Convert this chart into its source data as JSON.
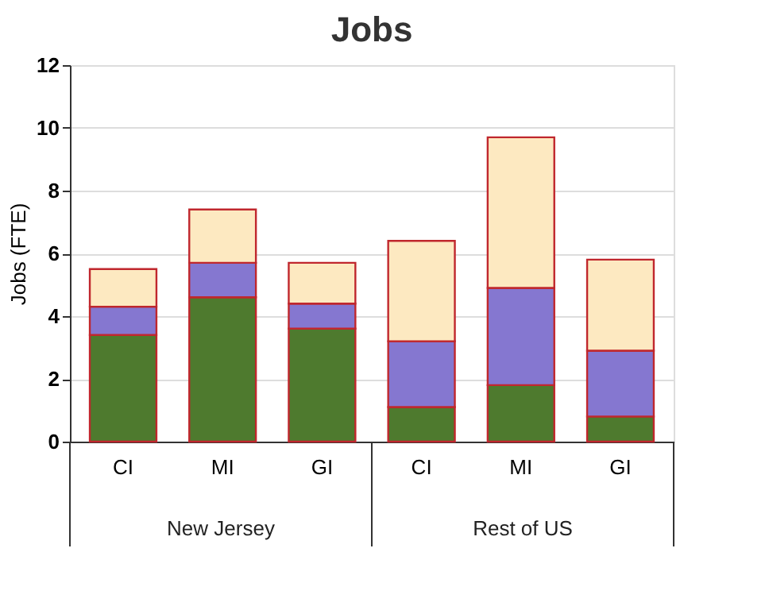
{
  "chart_data": {
    "type": "bar",
    "title": "Jobs",
    "ylabel": "Jobs (FTE)",
    "stacked": true,
    "categories": [
      "CI",
      "MI",
      "GI",
      "CI",
      "MI",
      "GI"
    ],
    "series": [
      {
        "color": "#4e7a2e",
        "values": [
          3.4,
          4.6,
          3.6,
          1.1,
          1.8,
          0.8
        ]
      },
      {
        "color": "#8577d0",
        "values": [
          0.9,
          1.1,
          0.8,
          2.1,
          3.1,
          2.1
        ]
      },
      {
        "color": "#fde9c1",
        "values": [
          1.2,
          1.7,
          1.3,
          3.2,
          4.8,
          2.9
        ]
      }
    ],
    "ylim": [
      0,
      12
    ],
    "yticks": [
      0,
      2,
      4,
      6,
      8,
      10,
      12
    ],
    "grid": "y",
    "legend": false,
    "annotations": [
      "New Jersey",
      "Rest of US"
    ]
  }
}
